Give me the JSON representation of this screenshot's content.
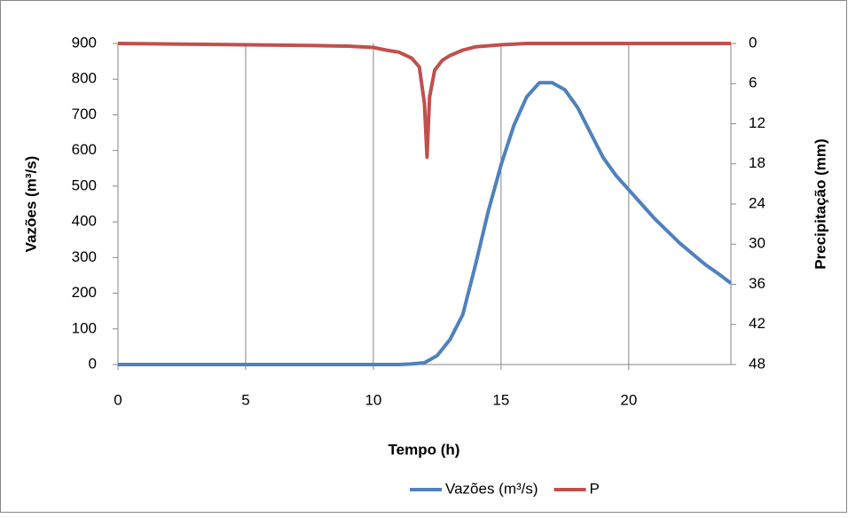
{
  "chart_data": {
    "type": "line",
    "xlabel": "Tempo (h)",
    "ylabel": "Vazões (m³/s)",
    "y2label": "Precipitação (mm)",
    "xlim": [
      0,
      24
    ],
    "xticks": [
      0,
      5,
      10,
      15,
      20
    ],
    "ylim": [
      0,
      900
    ],
    "yticks": [
      0,
      100,
      200,
      300,
      400,
      500,
      600,
      700,
      800,
      900
    ],
    "y2lim": [
      48,
      0
    ],
    "y2ticks": [
      0,
      6,
      12,
      18,
      24,
      30,
      36,
      42,
      48
    ],
    "grid": "x",
    "legend": "bottom",
    "series": [
      {
        "name": "Vazões (m³/s)",
        "color": "#4f81bd",
        "x": [
          0,
          2,
          4,
          6,
          8,
          10,
          11,
          11.5,
          12,
          12.5,
          13,
          13.5,
          14,
          14.5,
          15,
          15.5,
          16,
          16.5,
          17,
          17.5,
          18,
          18.5,
          19,
          19.5,
          20,
          20.5,
          21,
          21.5,
          22,
          22.5,
          23,
          23.5,
          24
        ],
        "values": [
          0,
          0,
          0,
          0,
          0,
          0,
          0,
          2,
          5,
          25,
          70,
          140,
          280,
          430,
          560,
          670,
          750,
          790,
          790,
          770,
          720,
          650,
          580,
          530,
          490,
          450,
          410,
          375,
          340,
          310,
          280,
          255,
          228
        ]
      },
      {
        "name": "P",
        "color": "#c0504d",
        "axis": "y2",
        "x": [
          0,
          7.5,
          9,
          10,
          10.5,
          11,
          11.5,
          11.8,
          12,
          12.1,
          12.2,
          12.4,
          12.7,
          13,
          13.5,
          14,
          15,
          16,
          20,
          24
        ],
        "values": [
          0,
          0.3,
          0.4,
          0.6,
          1,
          1.3,
          2.2,
          3.5,
          9,
          17,
          8,
          4,
          2.5,
          1.8,
          1,
          0.5,
          0.2,
          0,
          0,
          0
        ]
      }
    ]
  }
}
